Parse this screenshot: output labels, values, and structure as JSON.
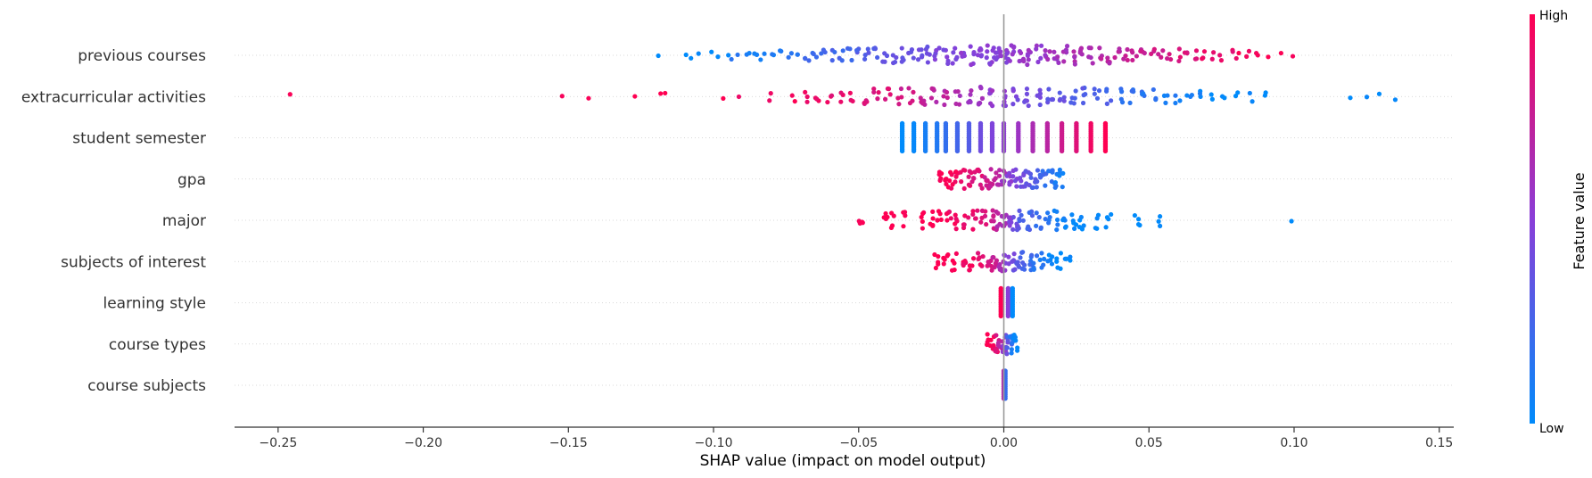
{
  "chart_data": {
    "type": "scatter",
    "subtype": "shap-beeswarm",
    "xlabel": "SHAP value (impact on model output)",
    "xlim": [
      -0.265,
      0.155
    ],
    "x_ticks": [
      {
        "value": -0.25,
        "label": "−0.25"
      },
      {
        "value": -0.2,
        "label": "−0.20"
      },
      {
        "value": -0.15,
        "label": "−0.15"
      },
      {
        "value": -0.1,
        "label": "−0.10"
      },
      {
        "value": -0.05,
        "label": "−0.05"
      },
      {
        "value": 0.0,
        "label": "0.00"
      },
      {
        "value": 0.05,
        "label": "0.05"
      },
      {
        "value": 0.1,
        "label": "0.10"
      },
      {
        "value": 0.15,
        "label": "0.15"
      }
    ],
    "zero_line": 0,
    "grid": false,
    "colorbar": {
      "title": "Feature value",
      "high_label": "High",
      "low_label": "Low",
      "high_color": "#ff0052",
      "mid_color": "#8a3ed8",
      "low_color": "#008bfb"
    },
    "features": [
      {
        "name": "previous courses",
        "spread": 0.006,
        "points": [
          [
            -0.119,
            0
          ],
          [
            -0.109,
            0
          ],
          [
            -0.107,
            0
          ],
          [
            -0.105,
            0
          ],
          [
            -0.101,
            0
          ],
          [
            -0.098,
            0.05
          ],
          [
            -0.095,
            0.05
          ],
          [
            -0.093,
            0.1
          ],
          [
            -0.091,
            0.1
          ],
          [
            -0.088,
            0.1
          ],
          [
            -0.086,
            0.1
          ],
          [
            -0.083,
            0.1
          ],
          [
            -0.08,
            0.1
          ],
          [
            -0.077,
            0.15
          ],
          [
            -0.074,
            0.15
          ],
          [
            -0.071,
            0.15
          ],
          [
            -0.068,
            0.2
          ],
          [
            -0.065,
            0.2
          ],
          [
            -0.062,
            0.2
          ],
          [
            -0.059,
            0.25
          ],
          [
            -0.056,
            0.25
          ],
          [
            -0.053,
            0.25
          ],
          [
            -0.05,
            0.3
          ],
          [
            -0.047,
            0.3
          ],
          [
            -0.044,
            0.3
          ],
          [
            -0.041,
            0.35
          ],
          [
            -0.038,
            0.35
          ],
          [
            -0.035,
            0.35
          ],
          [
            -0.032,
            0.4
          ],
          [
            -0.029,
            0.4
          ],
          [
            -0.026,
            0.4
          ],
          [
            -0.023,
            0.45
          ],
          [
            -0.02,
            0.45
          ],
          [
            -0.017,
            0.45
          ],
          [
            -0.014,
            0.5
          ],
          [
            -0.011,
            0.5
          ],
          [
            -0.008,
            0.5
          ],
          [
            -0.005,
            0.5
          ],
          [
            -0.003,
            0.5
          ],
          [
            -0.001,
            0.5
          ],
          [
            0.001,
            0.5
          ],
          [
            0.003,
            0.55
          ],
          [
            0.006,
            0.55
          ],
          [
            0.009,
            0.55
          ],
          [
            0.012,
            0.55
          ],
          [
            0.015,
            0.6
          ],
          [
            0.018,
            0.6
          ],
          [
            0.021,
            0.6
          ],
          [
            0.024,
            0.65
          ],
          [
            0.027,
            0.65
          ],
          [
            0.03,
            0.65
          ],
          [
            0.033,
            0.7
          ],
          [
            0.036,
            0.7
          ],
          [
            0.039,
            0.7
          ],
          [
            0.042,
            0.75
          ],
          [
            0.045,
            0.75
          ],
          [
            0.048,
            0.75
          ],
          [
            0.051,
            0.8
          ],
          [
            0.054,
            0.8
          ],
          [
            0.057,
            0.8
          ],
          [
            0.06,
            0.85
          ],
          [
            0.063,
            0.85
          ],
          [
            0.066,
            0.85
          ],
          [
            0.069,
            0.9
          ],
          [
            0.072,
            0.9
          ],
          [
            0.075,
            0.9
          ],
          [
            0.078,
            0.9
          ],
          [
            0.081,
            0.95
          ],
          [
            0.084,
            0.95
          ],
          [
            0.087,
            1
          ],
          [
            0.091,
            1
          ],
          [
            0.096,
            1
          ],
          [
            0.1,
            1
          ]
        ]
      },
      {
        "name": "extracurricular activities",
        "spread": 0.007,
        "points": [
          [
            -0.245,
            1
          ],
          [
            -0.153,
            1
          ],
          [
            -0.143,
            1
          ],
          [
            -0.128,
            1
          ],
          [
            -0.119,
            1
          ],
          [
            -0.117,
            1
          ],
          [
            -0.097,
            1
          ],
          [
            -0.091,
            0.95
          ],
          [
            -0.08,
            0.95
          ],
          [
            -0.072,
            0.95
          ],
          [
            -0.068,
            0.95
          ],
          [
            -0.064,
            0.95
          ],
          [
            -0.06,
            0.9
          ],
          [
            -0.056,
            0.9
          ],
          [
            -0.052,
            0.9
          ],
          [
            -0.048,
            0.85
          ],
          [
            -0.044,
            0.85
          ],
          [
            -0.04,
            0.85
          ],
          [
            -0.036,
            0.8
          ],
          [
            -0.032,
            0.8
          ],
          [
            -0.028,
            0.75
          ],
          [
            -0.024,
            0.7
          ],
          [
            -0.02,
            0.7
          ],
          [
            -0.016,
            0.65
          ],
          [
            -0.012,
            0.6
          ],
          [
            -0.008,
            0.6
          ],
          [
            -0.004,
            0.55
          ],
          [
            0,
            0.5
          ],
          [
            0.004,
            0.45
          ],
          [
            0.008,
            0.4
          ],
          [
            0.012,
            0.4
          ],
          [
            0.016,
            0.35
          ],
          [
            0.02,
            0.35
          ],
          [
            0.024,
            0.3
          ],
          [
            0.028,
            0.3
          ],
          [
            0.032,
            0.25
          ],
          [
            0.036,
            0.25
          ],
          [
            0.04,
            0.2
          ],
          [
            0.044,
            0.2
          ],
          [
            0.048,
            0.15
          ],
          [
            0.052,
            0.15
          ],
          [
            0.056,
            0.1
          ],
          [
            0.06,
            0.1
          ],
          [
            0.064,
            0.05
          ],
          [
            0.068,
            0.05
          ],
          [
            0.072,
            0
          ],
          [
            0.076,
            0
          ],
          [
            0.08,
            0
          ],
          [
            0.085,
            0
          ],
          [
            0.09,
            0
          ],
          [
            0.12,
            0
          ],
          [
            0.125,
            0
          ],
          [
            0.13,
            0
          ],
          [
            0.135,
            0
          ]
        ]
      },
      {
        "name": "student semester",
        "spread": 0.0,
        "columns": [
          [
            -0.035,
            0
          ],
          [
            -0.031,
            0.02
          ],
          [
            -0.027,
            0.08
          ],
          [
            -0.023,
            0.12
          ],
          [
            -0.02,
            0.18
          ],
          [
            -0.016,
            0.24
          ],
          [
            -0.012,
            0.3
          ],
          [
            -0.008,
            0.4
          ],
          [
            -0.004,
            0.46
          ],
          [
            0,
            0.52
          ],
          [
            0.005,
            0.58
          ],
          [
            0.01,
            0.64
          ],
          [
            0.015,
            0.7
          ],
          [
            0.02,
            0.78
          ],
          [
            0.025,
            0.86
          ],
          [
            0.03,
            0.94
          ],
          [
            0.035,
            1
          ]
        ]
      },
      {
        "name": "gpa",
        "spread": 0.005,
        "points": [
          [
            -0.022,
            1
          ],
          [
            -0.02,
            1
          ],
          [
            -0.018,
            0.95
          ],
          [
            -0.016,
            0.95
          ],
          [
            -0.014,
            0.9
          ],
          [
            -0.012,
            0.9
          ],
          [
            -0.01,
            0.85
          ],
          [
            -0.008,
            0.85
          ],
          [
            -0.006,
            0.8
          ],
          [
            -0.004,
            0.75
          ],
          [
            -0.002,
            0.7
          ],
          [
            0,
            0.6
          ],
          [
            0.002,
            0.5
          ],
          [
            0.004,
            0.45
          ],
          [
            0.006,
            0.4
          ],
          [
            0.008,
            0.35
          ],
          [
            0.01,
            0.3
          ],
          [
            0.012,
            0.25
          ],
          [
            0.014,
            0.2
          ],
          [
            0.016,
            0.15
          ],
          [
            0.018,
            0.1
          ],
          [
            0.02,
            0.05
          ]
        ]
      },
      {
        "name": "major",
        "spread": 0.004,
        "points": [
          [
            -0.049,
            1
          ],
          [
            -0.041,
            1
          ],
          [
            -0.038,
            1
          ],
          [
            -0.034,
            1
          ],
          [
            -0.028,
            1
          ],
          [
            -0.025,
            1
          ],
          [
            -0.022,
            1
          ],
          [
            -0.019,
            0.95
          ],
          [
            -0.016,
            0.95
          ],
          [
            -0.013,
            0.9
          ],
          [
            -0.01,
            0.9
          ],
          [
            -0.007,
            0.85
          ],
          [
            -0.004,
            0.8
          ],
          [
            -0.002,
            0.7
          ],
          [
            0,
            0.6
          ],
          [
            0.002,
            0.5
          ],
          [
            0.004,
            0.4
          ],
          [
            0.006,
            0.3
          ],
          [
            0.009,
            0.25
          ],
          [
            0.012,
            0.2
          ],
          [
            0.015,
            0.15
          ],
          [
            0.018,
            0.1
          ],
          [
            0.021,
            0.05
          ],
          [
            0.024,
            0
          ],
          [
            0.027,
            0
          ],
          [
            0.032,
            0
          ],
          [
            0.036,
            0
          ],
          [
            0.046,
            0
          ],
          [
            0.054,
            0
          ],
          [
            0.099,
            0
          ]
        ]
      },
      {
        "name": "subjects of interest",
        "spread": 0.004,
        "points": [
          [
            -0.023,
            1
          ],
          [
            -0.02,
            1
          ],
          [
            -0.017,
            1
          ],
          [
            -0.014,
            0.95
          ],
          [
            -0.011,
            0.95
          ],
          [
            -0.008,
            0.9
          ],
          [
            -0.005,
            0.85
          ],
          [
            -0.003,
            0.75
          ],
          [
            -0.001,
            0.65
          ],
          [
            0.001,
            0.5
          ],
          [
            0.003,
            0.4
          ],
          [
            0.005,
            0.3
          ],
          [
            0.007,
            0.25
          ],
          [
            0.009,
            0.2
          ],
          [
            0.011,
            0.15
          ],
          [
            0.013,
            0.1
          ],
          [
            0.016,
            0.05
          ],
          [
            0.019,
            0
          ],
          [
            0.022,
            0
          ]
        ]
      },
      {
        "name": "learning style",
        "spread": 0.0,
        "columns": [
          [
            -0.001,
            1
          ],
          [
            0.0015,
            0.5
          ],
          [
            0.003,
            0
          ]
        ]
      },
      {
        "name": "course types",
        "spread": 0.002,
        "points": [
          [
            -0.005,
            1
          ],
          [
            -0.003,
            0.95
          ],
          [
            -0.002,
            0.85
          ],
          [
            -0.001,
            0.7
          ],
          [
            0,
            0.55
          ],
          [
            0.001,
            0.4
          ],
          [
            0.002,
            0.25
          ],
          [
            0.003,
            0.1
          ],
          [
            0.004,
            0
          ]
        ]
      },
      {
        "name": "course subjects",
        "spread": 0.0,
        "columns": [
          [
            0,
            0.7
          ],
          [
            0.0005,
            0.2
          ]
        ]
      }
    ]
  }
}
